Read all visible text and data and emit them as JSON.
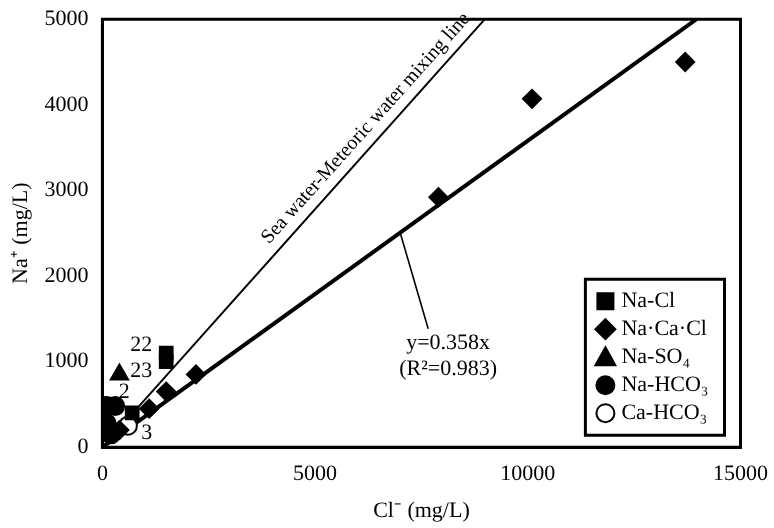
{
  "chart_data": {
    "type": "scatter",
    "xlabel": "Cl⁻ (mg/L)",
    "ylabel": "Na⁺ (mg/L)",
    "xlim": [
      0,
      15000
    ],
    "ylim": [
      0,
      5000
    ],
    "xticks": [
      0,
      5000,
      10000,
      15000
    ],
    "yticks": [
      0,
      1000,
      2000,
      3000,
      4000,
      5000
    ],
    "grid": false,
    "legend": "bottom right",
    "series": [
      {
        "name": "Na-Cl",
        "color": "#000000",
        "marker": "square",
        "x": [
          1500,
          1500,
          700
        ],
        "values": [
          1100,
          1000,
          400
        ]
      },
      {
        "name": "Na·Ca·Cl",
        "color": "#000000",
        "marker": "diamond",
        "x": [
          13700,
          10100,
          7900,
          2200,
          1500,
          1100,
          400
        ],
        "values": [
          4500,
          4070,
          2920,
          850,
          650,
          450,
          200
        ]
      },
      {
        "name": "Na-SO₄",
        "color": "#000000",
        "marker": "triangle",
        "x": [
          400
        ],
        "values": [
          850
        ]
      },
      {
        "name": "Na-HCO₃",
        "color": "#000000",
        "marker": "circle",
        "x": [
          300,
          100,
          100,
          200
        ],
        "values": [
          480,
          480,
          280,
          150
        ]
      },
      {
        "name": "Ca-HCO₃",
        "color": "#ffffff",
        "marker": "circle",
        "x": [
          600
        ],
        "values": [
          250
        ]
      },
      {
        "name": "Sea water-Meteoric water mixing line",
        "type": "line",
        "color": "#000000",
        "marker": "none",
        "x": [
          0,
          8990
        ],
        "values": [
          0,
          5000
        ]
      },
      {
        "type": "line",
        "color": "#000000",
        "marker": "none",
        "x": [
          0,
          13966
        ],
        "values": [
          0,
          5000
        ]
      }
    ],
    "annotations": [
      {
        "text": "22",
        "x": 1500,
        "y": 1100
      },
      {
        "text": "23",
        "x": 1500,
        "y": 1000
      },
      {
        "text": "2",
        "x": 700,
        "y": 400
      },
      {
        "text": "3",
        "x": 1100,
        "y": 450
      },
      {
        "text": "y=0.358x",
        "x": 7000,
        "y": 2506
      },
      "(R²=0.983)"
    ]
  }
}
